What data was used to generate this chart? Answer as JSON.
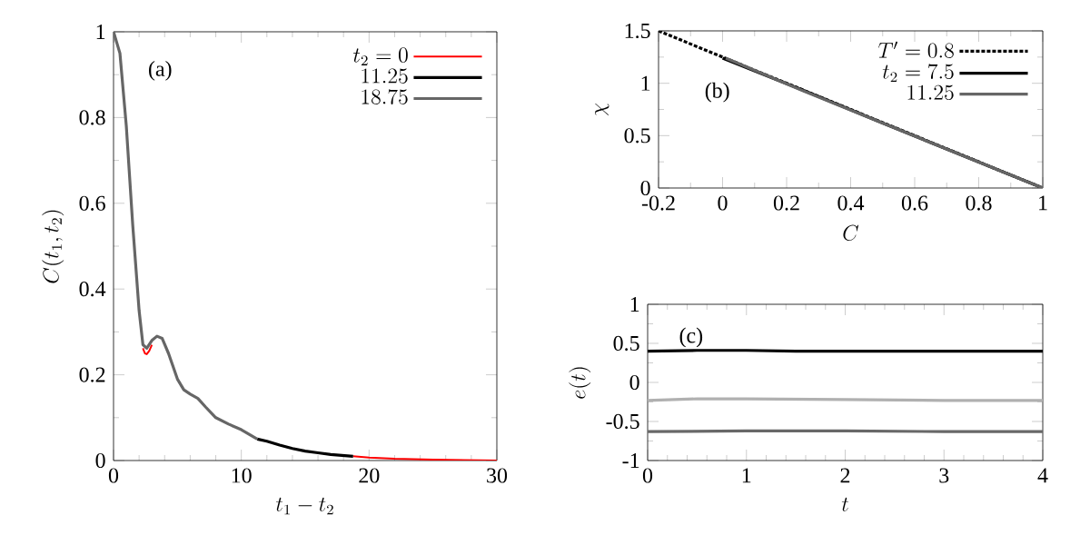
{
  "chart_data": [
    {
      "type": "line",
      "xlabel": "t_1 - t_2",
      "ylabel": "C(t_1,t_2)",
      "annotations": [
        "(a)"
      ],
      "xlim": [
        0,
        30
      ],
      "ylim": [
        0,
        1
      ],
      "xticks": [
        0,
        10,
        20,
        30
      ],
      "yticks": [
        0,
        0.2,
        0.4,
        0.6,
        0.8,
        1
      ],
      "legend": "top right",
      "grid": false,
      "marker": "none",
      "series": [
        {
          "name": "t_2 = 0",
          "color": "#ff0000",
          "x": [
            2.3,
            2.45,
            2.6,
            2.8,
            3,
            10,
            18.75,
            20,
            22,
            25,
            30
          ],
          "values": [
            0.262,
            0.25,
            0.248,
            0.256,
            0.27,
            null,
            0.01,
            0.007,
            0.004,
            0.002,
            0
          ]
        },
        {
          "name": "11.25",
          "color": "#000000",
          "x": [
            11.25,
            12,
            13,
            14,
            15,
            16,
            17,
            18.75
          ],
          "values": [
            0.05,
            0.045,
            0.036,
            0.028,
            0.022,
            0.018,
            0.014,
            0.01
          ]
        },
        {
          "name": "18.75",
          "color": "#666666",
          "x": [
            0,
            0.5,
            1,
            1.5,
            2,
            2.3,
            2.6,
            3,
            3.4,
            3.8,
            4.3,
            5,
            5.5,
            6,
            6.6,
            7.2,
            8,
            9,
            10,
            11.25
          ],
          "values": [
            1,
            0.95,
            0.78,
            0.55,
            0.35,
            0.27,
            0.262,
            0.28,
            0.29,
            0.285,
            0.25,
            0.19,
            0.165,
            0.155,
            0.145,
            0.125,
            0.1,
            0.085,
            0.072,
            0.05
          ]
        }
      ]
    },
    {
      "type": "line",
      "xlabel": "C",
      "ylabel": "\\chi",
      "annotations": [
        "(b)"
      ],
      "xlim": [
        -0.2,
        1
      ],
      "ylim": [
        0,
        1.5
      ],
      "xticks": [
        {
          "value": -0.2,
          "label": "-0.2"
        },
        0,
        0.2,
        0.4,
        0.6,
        0.8,
        1
      ],
      "yticks": [
        0,
        0.5,
        1,
        1.5
      ],
      "legend": "top right",
      "grid": false,
      "marker": "none",
      "series": [
        {
          "name": "T' = 0.8",
          "color": "#000000",
          "line_style": "dashed",
          "x": [
            -0.2,
            1
          ],
          "values": [
            1.5,
            0
          ]
        },
        {
          "name": "t_2 = 7.5",
          "color": "#000000",
          "x": [
            0,
            0.27,
            0.5,
            1
          ],
          "values": [
            1.24,
            0.91,
            0.62,
            0
          ]
        },
        {
          "name": "11.25",
          "color": "#666666",
          "x": [
            0.01,
            0.25,
            0.5,
            1
          ],
          "values": [
            1.24,
            0.93,
            0.62,
            0
          ]
        }
      ]
    },
    {
      "type": "line",
      "xlabel": "t",
      "ylabel": "e(t)",
      "annotations": [
        "(c)"
      ],
      "xlim": [
        0,
        4
      ],
      "ylim": [
        -1,
        1
      ],
      "xticks": [
        0,
        1,
        2,
        3,
        4
      ],
      "yticks": [
        {
          "value": -1,
          "label": "-1"
        },
        {
          "value": -0.5,
          "label": "-0.5"
        },
        0,
        0.5,
        1
      ],
      "grid": false,
      "marker": "none",
      "series": [
        {
          "color": "#000000",
          "x": [
            0,
            0.5,
            1,
            1.5,
            2,
            3,
            4
          ],
          "values": [
            0.4,
            0.41,
            0.41,
            0.4,
            0.4,
            0.4,
            0.4
          ]
        },
        {
          "color": "#b0b0b0",
          "x": [
            0,
            0.5,
            1,
            2,
            3,
            4
          ],
          "values": [
            -0.23,
            -0.21,
            -0.21,
            -0.22,
            -0.23,
            -0.23
          ]
        },
        {
          "color": "#686868",
          "x": [
            0,
            1,
            1.3,
            2,
            3,
            4
          ],
          "values": [
            -0.63,
            -0.62,
            -0.62,
            -0.62,
            -0.63,
            -0.63
          ]
        }
      ]
    }
  ]
}
